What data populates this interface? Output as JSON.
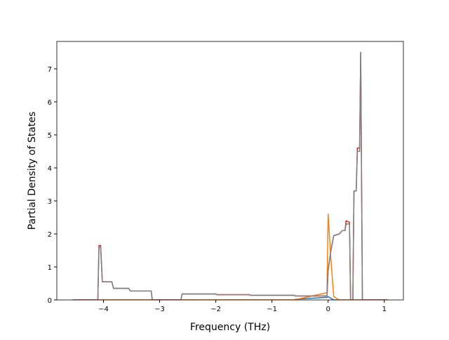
{
  "chart_data": {
    "type": "line",
    "xlabel": "Frequency (THz)",
    "ylabel": "Partial Density of States",
    "x": [
      -4.55,
      -4.1,
      -4.08,
      -4.05,
      -4.02,
      -3.85,
      -3.82,
      -3.55,
      -3.52,
      -3.15,
      -3.13,
      -2.62,
      -2.6,
      -2.0,
      -1.98,
      -1.4,
      -1.38,
      -0.6,
      -0.58,
      -0.02,
      0.0,
      0.05,
      0.1,
      0.2,
      0.25,
      0.3,
      0.32,
      0.38,
      0.4,
      0.44,
      0.46,
      0.5,
      0.52,
      0.56,
      0.58,
      0.61,
      1.06
    ],
    "series": [
      {
        "color": "#1f77b4",
        "values": [
          0,
          0,
          0,
          0,
          0,
          0,
          0,
          0,
          0,
          0,
          0,
          0,
          0,
          0,
          0,
          0,
          0,
          0,
          0.02,
          0.08,
          0.1,
          0.05,
          0,
          0,
          0,
          0,
          0,
          0,
          0,
          0,
          0,
          0,
          0,
          0,
          0,
          0,
          0
        ]
      },
      {
        "color": "#ff7f0e",
        "values": [
          0,
          0,
          0,
          0,
          0,
          0,
          0,
          0,
          0,
          0,
          0,
          0,
          0,
          0,
          0,
          0,
          0,
          0,
          0.01,
          0.22,
          2.6,
          1.2,
          0.1,
          0,
          0,
          0,
          0,
          0,
          0,
          0,
          0,
          0,
          0,
          0,
          0,
          0,
          0
        ]
      },
      {
        "color": "#d62728",
        "values": [
          0,
          0,
          1.65,
          1.65,
          0.55,
          0.55,
          0.35,
          0.35,
          0.27,
          0.27,
          0,
          0,
          0.18,
          0.18,
          0.16,
          0.16,
          0.14,
          0.14,
          0.12,
          0.12,
          0.9,
          1.5,
          1.95,
          2.0,
          2.1,
          2.1,
          2.4,
          2.35,
          0,
          0,
          3.3,
          3.3,
          4.6,
          4.6,
          7.5,
          0,
          0
        ]
      },
      {
        "color": "#7f7f7f",
        "values": [
          0,
          0,
          1.6,
          1.6,
          0.55,
          0.55,
          0.35,
          0.35,
          0.27,
          0.27,
          0,
          0,
          0.18,
          0.18,
          0.16,
          0.16,
          0.14,
          0.14,
          0.12,
          0.12,
          0.9,
          1.5,
          1.95,
          2.0,
          2.1,
          2.1,
          2.3,
          2.3,
          0,
          0,
          3.3,
          3.3,
          4.5,
          4.5,
          7.5,
          0,
          0
        ]
      }
    ],
    "xlim": [
      -4.83,
      1.34
    ],
    "ylim": [
      0,
      7.83
    ],
    "xticks": [
      {
        "value": -4,
        "label": "−4"
      },
      {
        "value": -3,
        "label": "−3"
      },
      {
        "value": -2,
        "label": "−2"
      },
      {
        "value": -1,
        "label": "−1"
      },
      0,
      1
    ],
    "yticks": [
      0,
      1,
      2,
      3,
      4,
      5,
      6,
      7
    ]
  }
}
